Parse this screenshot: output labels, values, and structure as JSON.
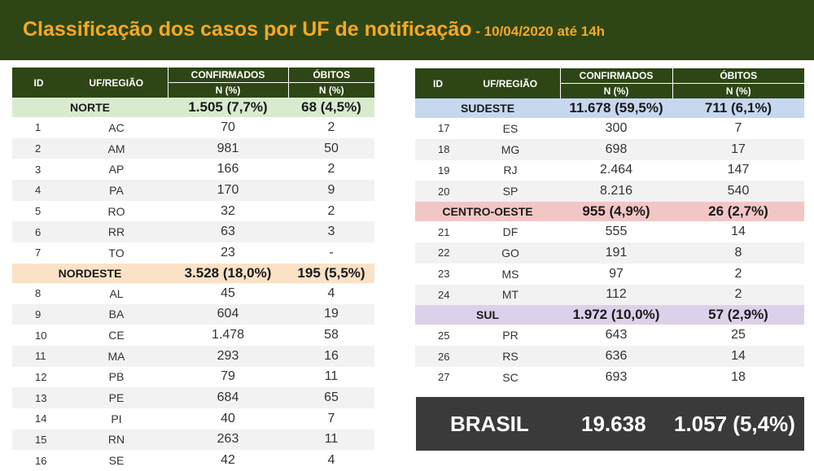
{
  "title": {
    "main": "Classificação dos casos por UF de notificação",
    "sub": " - 10/04/2020 até 14h"
  },
  "columns": {
    "id": "ID",
    "uf": "UF/REGIÃO",
    "confirmados": "CONFIRMADOS",
    "obitos": "ÓBITOS",
    "n_pct": "N (%)"
  },
  "left": {
    "norte": {
      "name": "NORTE",
      "confirmados": "1.505 (7,7%)",
      "obitos": "68 (4,5%)",
      "rows": [
        {
          "id": "1",
          "uf": "AC",
          "conf": "70",
          "ob": "2"
        },
        {
          "id": "2",
          "uf": "AM",
          "conf": "981",
          "ob": "50"
        },
        {
          "id": "3",
          "uf": "AP",
          "conf": "166",
          "ob": "2"
        },
        {
          "id": "4",
          "uf": "PA",
          "conf": "170",
          "ob": "9"
        },
        {
          "id": "5",
          "uf": "RO",
          "conf": "32",
          "ob": "2"
        },
        {
          "id": "6",
          "uf": "RR",
          "conf": "63",
          "ob": "3"
        },
        {
          "id": "7",
          "uf": "TO",
          "conf": "23",
          "ob": "-"
        }
      ]
    },
    "nordeste": {
      "name": "NORDESTE",
      "confirmados": "3.528 (18,0%)",
      "obitos": "195 (5,5%)",
      "rows": [
        {
          "id": "8",
          "uf": "AL",
          "conf": "45",
          "ob": "4"
        },
        {
          "id": "9",
          "uf": "BA",
          "conf": "604",
          "ob": "19"
        },
        {
          "id": "10",
          "uf": "CE",
          "conf": "1.478",
          "ob": "58"
        },
        {
          "id": "11",
          "uf": "MA",
          "conf": "293",
          "ob": "16"
        },
        {
          "id": "12",
          "uf": "PB",
          "conf": "79",
          "ob": "11"
        },
        {
          "id": "13",
          "uf": "PE",
          "conf": "684",
          "ob": "65"
        },
        {
          "id": "14",
          "uf": "PI",
          "conf": "40",
          "ob": "7"
        },
        {
          "id": "15",
          "uf": "RN",
          "conf": "263",
          "ob": "11"
        },
        {
          "id": "16",
          "uf": "SE",
          "conf": "42",
          "ob": "4"
        }
      ]
    }
  },
  "right": {
    "sudeste": {
      "name": "SUDESTE",
      "confirmados": "11.678 (59,5%)",
      "obitos": "711 (6,1%)",
      "rows": [
        {
          "id": "17",
          "uf": "ES",
          "conf": "300",
          "ob": "7"
        },
        {
          "id": "18",
          "uf": "MG",
          "conf": "698",
          "ob": "17"
        },
        {
          "id": "19",
          "uf": "RJ",
          "conf": "2.464",
          "ob": "147"
        },
        {
          "id": "20",
          "uf": "SP",
          "conf": "8.216",
          "ob": "540"
        }
      ]
    },
    "centro_oeste": {
      "name": "CENTRO-OESTE",
      "confirmados": "955 (4,9%)",
      "obitos": "26 (2,7%)",
      "rows": [
        {
          "id": "21",
          "uf": "DF",
          "conf": "555",
          "ob": "14"
        },
        {
          "id": "22",
          "uf": "GO",
          "conf": "191",
          "ob": "8"
        },
        {
          "id": "23",
          "uf": "MS",
          "conf": "97",
          "ob": "2"
        },
        {
          "id": "24",
          "uf": "MT",
          "conf": "112",
          "ob": "2"
        }
      ]
    },
    "sul": {
      "name": "SUL",
      "confirmados": "1.972 (10,0%)",
      "obitos": "57 (2,9%)",
      "rows": [
        {
          "id": "25",
          "uf": "PR",
          "conf": "643",
          "ob": "25"
        },
        {
          "id": "26",
          "uf": "RS",
          "conf": "636",
          "ob": "14"
        },
        {
          "id": "27",
          "uf": "SC",
          "conf": "693",
          "ob": "18"
        }
      ]
    }
  },
  "brasil": {
    "label": "BRASIL",
    "confirmados": "19.638",
    "obitos": "1.057 (5,4%)"
  },
  "colors": {
    "header_bg": "#2e4615",
    "title_color": "#f7a823",
    "norte": "#d9ebcf",
    "nordeste": "#fbe2c6",
    "sudeste": "#c7d7ef",
    "centro_oeste": "#f3c6c6",
    "sul": "#dcd1ea",
    "brasil_bg": "#3a3a3a"
  }
}
